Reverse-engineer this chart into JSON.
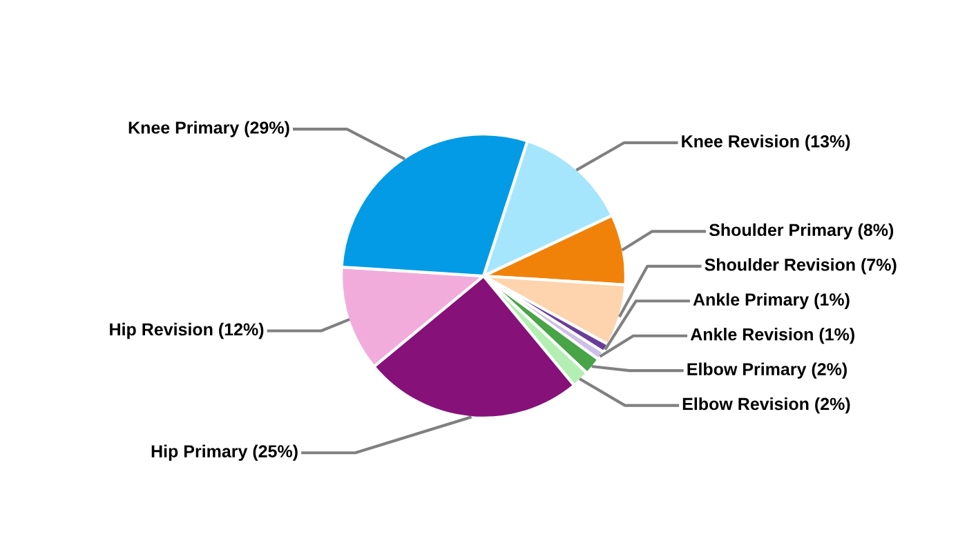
{
  "chart_data": {
    "type": "pie",
    "categories": [
      "Knee Revision",
      "Shoulder Primary",
      "Shoulder Revision",
      "Ankle Primary",
      "Ankle Revision",
      "Elbow Primary",
      "Elbow Revision",
      "Hip Primary",
      "Hip Revision",
      "Knee Primary"
    ],
    "values": [
      13,
      8,
      7,
      1,
      1,
      2,
      2,
      25,
      12,
      29
    ],
    "value_labels": [
      "(13%)",
      "(8%)",
      "(7%)",
      "(1%)",
      "(1%)",
      "(2%)",
      "(2%)",
      "(25%)",
      "(12%)",
      "(29%)"
    ],
    "colors": [
      "#a6e6fc",
      "#f0820a",
      "#fdd4ad",
      "#6a3d9a",
      "#cdbfe6",
      "#47a447",
      "#b3efb3",
      "#861179",
      "#f2acdc",
      "#039be5"
    ],
    "legend": false
  }
}
